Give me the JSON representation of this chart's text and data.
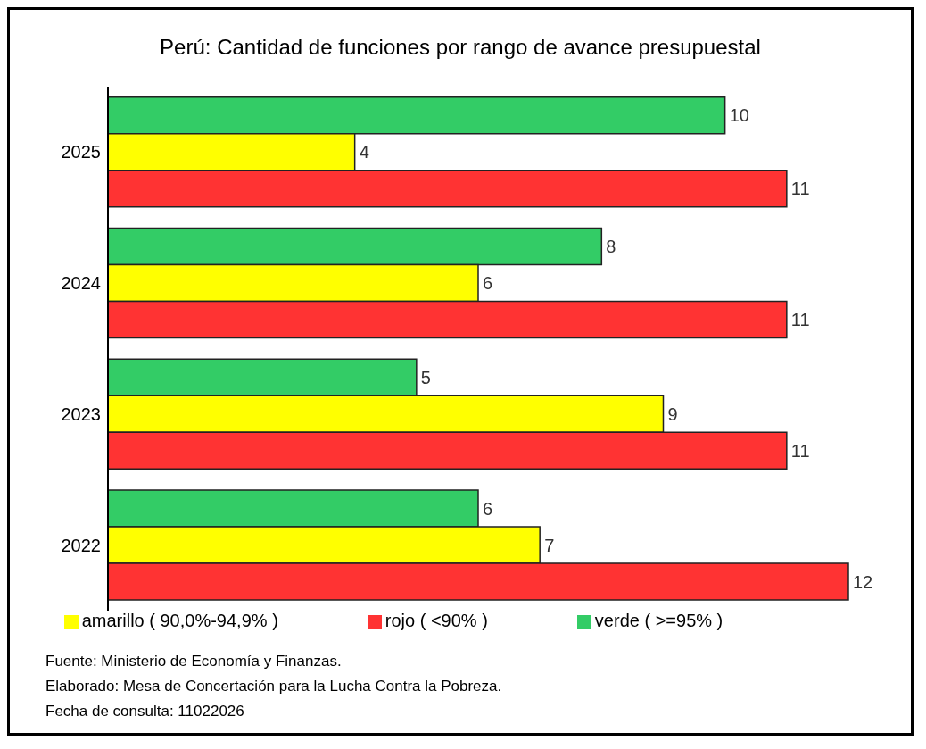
{
  "chart_data": {
    "type": "bar",
    "orientation": "horizontal",
    "title": "Perú: Cantidad de funciones por rango de avance presupuestal",
    "categories": [
      "2025",
      "2024",
      "2023",
      "2022"
    ],
    "series": [
      {
        "name": "verde ( >=95% )",
        "color": "#33cc66",
        "values": [
          10,
          8,
          5,
          6
        ]
      },
      {
        "name": "amarillo ( 90,0%-94,9% )",
        "color": "#ffff00",
        "values": [
          4,
          6,
          9,
          7
        ]
      },
      {
        "name": "rojo ( <90% )",
        "color": "#ff3333",
        "values": [
          11,
          11,
          11,
          12
        ]
      }
    ],
    "data_labels": true,
    "grid": false,
    "legend": "bottom",
    "tick_labels": "y",
    "annotations": [
      "Fuente: Ministerio de Economía y Finanzas.",
      "Elaborado: Mesa de Concertación para la Lucha Contra la Pobreza.",
      "Fecha de consulta: 11022026"
    ]
  }
}
